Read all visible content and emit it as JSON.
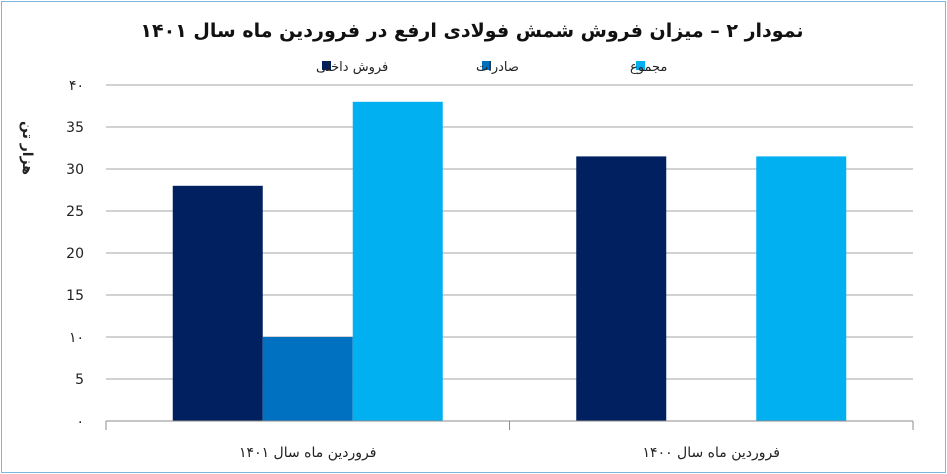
{
  "chart_data": {
    "type": "bar",
    "title": "نمودار ۲ – میزان فروش شمش فولادی ارفع در فروردین ماه سال ۱۴۰۱",
    "ylabel": "هزار تن",
    "xlabel": "",
    "ylim": [
      0,
      40
    ],
    "yticks": [
      0,
      5,
      10,
      15,
      20,
      25,
      30,
      35,
      40
    ],
    "ytick_labels": [
      "۰",
      "5",
      "۱۰",
      "15",
      "20",
      "25",
      "30",
      "35",
      "۴۰"
    ],
    "categories": [
      "فروردین ماه سال ۱۴۰۱",
      "فروردین ماه سال ۱۴۰۰"
    ],
    "series": [
      {
        "name": "فروش داخلی",
        "color": "#002060",
        "values": [
          28,
          31.5
        ]
      },
      {
        "name": "صادرات",
        "color": "#0070c0",
        "values": [
          10,
          null
        ]
      },
      {
        "name": "مجموع",
        "color": "#00b0f0",
        "values": [
          38,
          31.5
        ]
      }
    ],
    "legend_position": "top",
    "grid": true,
    "gridline_color": "#a6a6a6"
  }
}
